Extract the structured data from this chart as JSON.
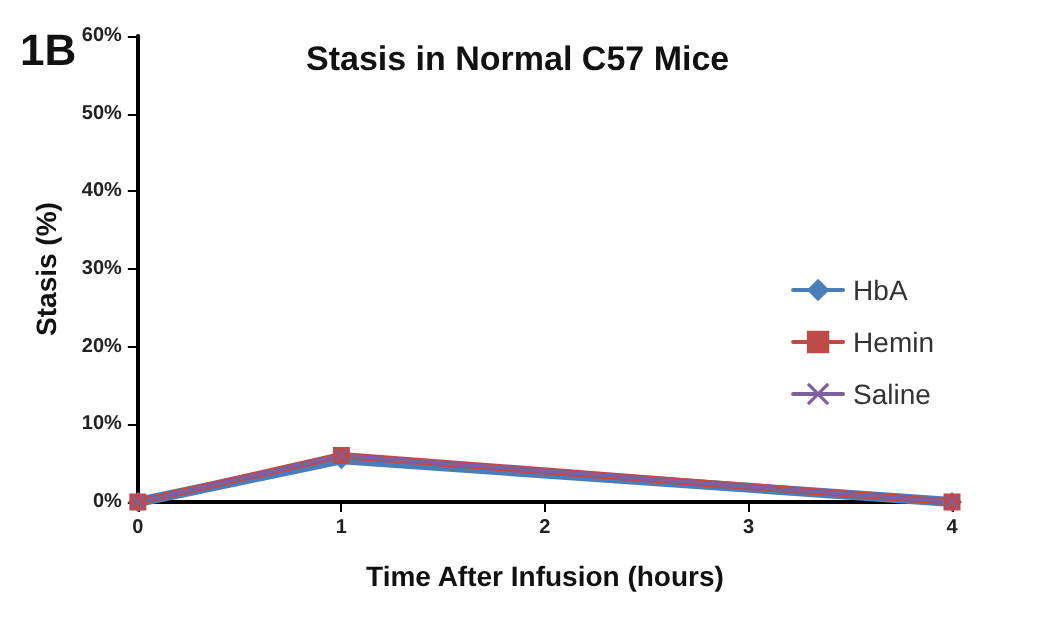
{
  "chart_data": {
    "type": "line",
    "title": "Stasis in Normal C57 Mice",
    "xlabel": "Time After Infusion (hours)",
    "ylabel": "Stasis (%)",
    "annotations": [
      "1B"
    ],
    "x": [
      0,
      1,
      4
    ],
    "series": [
      {
        "name": "HbA",
        "color": "#4a7ebb",
        "values": [
          0,
          5.5,
          0
        ],
        "marker": "diamond"
      },
      {
        "name": "Hemin",
        "color": "#be4b48",
        "values": [
          0,
          6,
          0
        ],
        "marker": "square"
      },
      {
        "name": "Saline",
        "color": "#7d60a0",
        "values": [
          0,
          6,
          0
        ],
        "marker": "cross"
      }
    ],
    "xlim": [
      0,
      4
    ],
    "xticks": [
      0,
      1,
      2,
      3,
      4
    ],
    "ylim": [
      0,
      60
    ],
    "yticks": [
      {
        "value": 0,
        "label": "0%"
      },
      {
        "value": 10,
        "label": "10%"
      },
      {
        "value": 20,
        "label": "20%"
      },
      {
        "value": 30,
        "label": "30%"
      },
      {
        "value": 40,
        "label": "40%"
      },
      {
        "value": 50,
        "label": "50%"
      },
      {
        "value": 60,
        "label": "60%"
      }
    ],
    "grid": false,
    "legend": "right",
    "line_style": "solid"
  }
}
